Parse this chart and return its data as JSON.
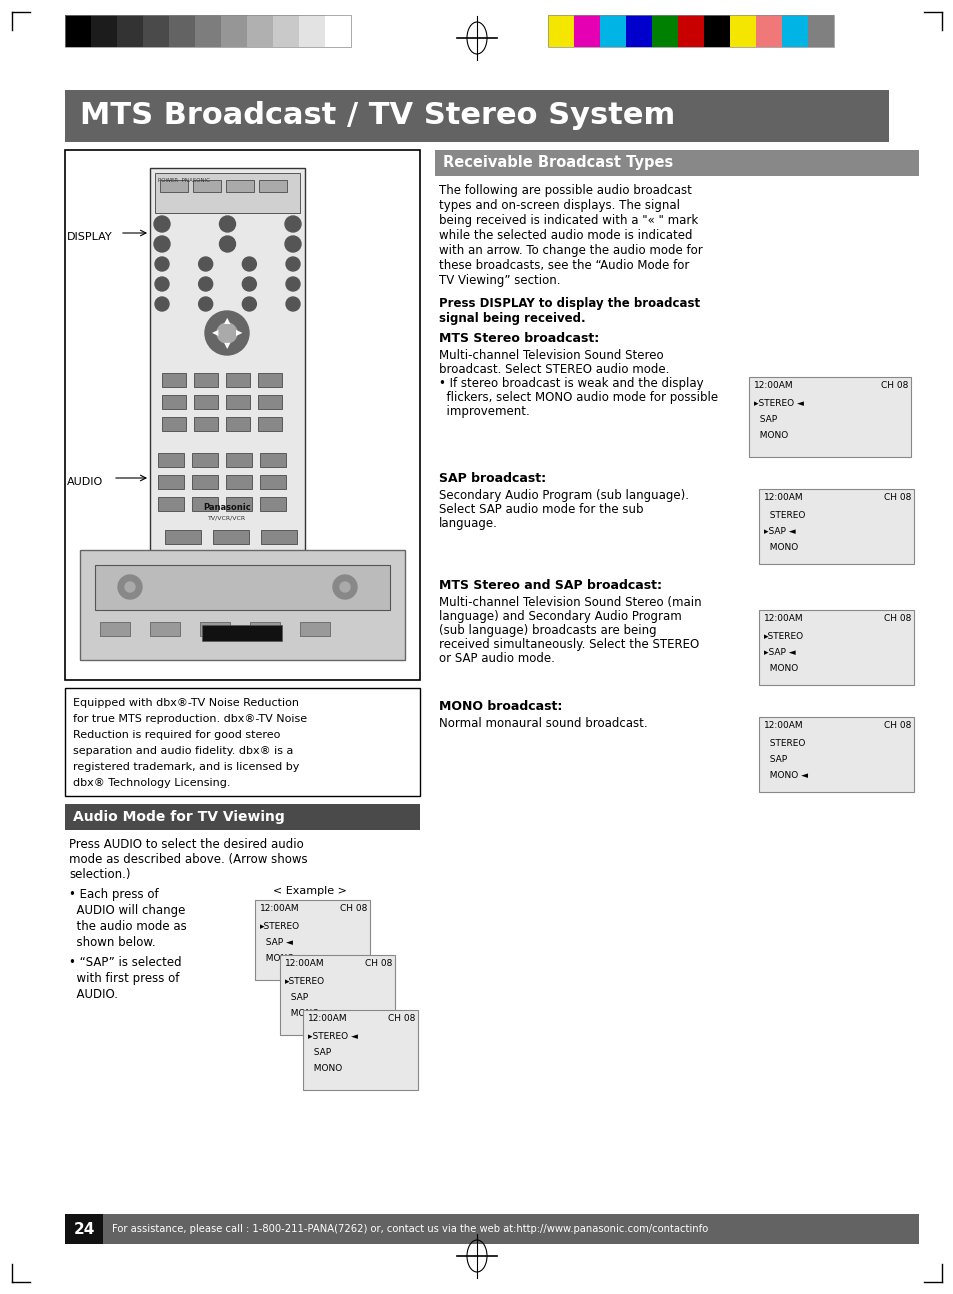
{
  "title": "MTS Broadcast / TV Stereo System",
  "title_bg": "#636363",
  "title_color": "#ffffff",
  "section1_title": "Receivable Broadcast Types",
  "section1_bg": "#888888",
  "section1_color": "#ffffff",
  "section2_title": "Audio Mode for TV Viewing",
  "section2_bg": "#4a4a4a",
  "section2_color": "#ffffff",
  "footer_bg": "#636363",
  "footer_text": "For assistance, please call : 1-800-211-PANA(7262) or, contact us via the web at:http://www.panasonic.com/contactinfo",
  "footer_color": "#ffffff",
  "page_number": "24",
  "gray_bar_colors": [
    "#000000",
    "#1c1c1c",
    "#333333",
    "#4a4a4a",
    "#636363",
    "#7d7d7d",
    "#969696",
    "#b0b0b0",
    "#c9c9c9",
    "#e3e3e3",
    "#ffffff"
  ],
  "color_bar_colors": [
    "#f5e600",
    "#e600b4",
    "#00b4e6",
    "#0000cd",
    "#008000",
    "#c80000",
    "#000000",
    "#f5e600",
    "#f07878",
    "#00b4e6",
    "#808080"
  ],
  "receivable_text": [
    "The following are possible audio broadcast",
    "types and on-screen displays. The signal",
    "being received is indicated with a \"« \" mark",
    "while the selected audio mode is indicated",
    "with an arrow. To change the audio mode for",
    "these broadcasts, see the “Audio Mode for",
    "TV Viewing” section."
  ],
  "mts_stereo_header": "MTS Stereo broadcast:",
  "mts_stereo_body": [
    "Multi-channel Television Sound Stereo",
    "broadcast. Select STEREO audio mode.",
    "• If stereo broadcast is weak and the display",
    "  flickers, select MONO audio mode for possible",
    "  improvement."
  ],
  "sap_header": "SAP broadcast:",
  "sap_body": [
    "Secondary Audio Program (sub language).",
    "Select SAP audio mode for the sub",
    "language."
  ],
  "mts_sap_header": "MTS Stereo and SAP broadcast:",
  "mts_sap_body": [
    "Multi-channel Television Sound Stereo (main",
    "language) and Secondary Audio Program",
    "(sub language) broadcasts are being",
    "received simultaneously. Select the STEREO",
    "or SAP audio mode."
  ],
  "mono_header": "MONO broadcast:",
  "mono_body": [
    "Normal monaural sound broadcast."
  ],
  "audio_mode_body": [
    "Press AUDIO to select the desired audio",
    "mode as described above. (Arrow shows",
    "selection.)"
  ],
  "equipped_text": [
    "Equipped with dbx®-TV Noise Reduction",
    "for true MTS reproduction. dbx®-TV Noise",
    "Reduction is required for good stereo",
    "separation and audio fidelity. dbx® is a",
    "registered trademark, and is licensed by",
    "dbx® Technology Licensing."
  ]
}
